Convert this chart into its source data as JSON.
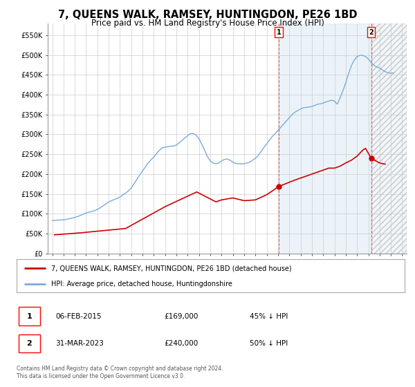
{
  "title": "7, QUEENS WALK, RAMSEY, HUNTINGDON, PE26 1BD",
  "subtitle": "Price paid vs. HM Land Registry's House Price Index (HPI)",
  "title_fontsize": 10.5,
  "subtitle_fontsize": 8.5,
  "ylabel_ticks": [
    "£0",
    "£50K",
    "£100K",
    "£150K",
    "£200K",
    "£250K",
    "£300K",
    "£350K",
    "£400K",
    "£450K",
    "£500K",
    "£550K"
  ],
  "ytick_values": [
    0,
    50000,
    100000,
    150000,
    200000,
    250000,
    300000,
    350000,
    400000,
    450000,
    500000,
    550000
  ],
  "ylim": [
    0,
    580000
  ],
  "xlim_start": 1994.6,
  "xlim_end": 2026.4,
  "hpi_color": "#7aaadd",
  "price_color": "#cc0000",
  "background_color": "#ffffff",
  "grid_color": "#cccccc",
  "hatch_color": "#cccccc",
  "marker1_x": 2015.08,
  "marker1_y": 169000,
  "marker2_x": 2023.25,
  "marker2_y": 240000,
  "legend_line1": "7, QUEENS WALK, RAMSEY, HUNTINGDON, PE26 1BD (detached house)",
  "legend_line2": "HPI: Average price, detached house, Huntingdonshire",
  "footnote": "Contains HM Land Registry data © Crown copyright and database right 2024.\nThis data is licensed under the Open Government Licence v3.0.",
  "hpi_data_x": [
    1995.0,
    1995.25,
    1995.5,
    1995.75,
    1996.0,
    1996.25,
    1996.5,
    1996.75,
    1997.0,
    1997.25,
    1997.5,
    1997.75,
    1998.0,
    1998.25,
    1998.5,
    1998.75,
    1999.0,
    1999.25,
    1999.5,
    1999.75,
    2000.0,
    2000.25,
    2000.5,
    2000.75,
    2001.0,
    2001.25,
    2001.5,
    2001.75,
    2002.0,
    2002.25,
    2002.5,
    2002.75,
    2003.0,
    2003.25,
    2003.5,
    2003.75,
    2004.0,
    2004.25,
    2004.5,
    2004.75,
    2005.0,
    2005.25,
    2005.5,
    2005.75,
    2006.0,
    2006.25,
    2006.5,
    2006.75,
    2007.0,
    2007.25,
    2007.5,
    2007.75,
    2008.0,
    2008.25,
    2008.5,
    2008.75,
    2009.0,
    2009.25,
    2009.5,
    2009.75,
    2010.0,
    2010.25,
    2010.5,
    2010.75,
    2011.0,
    2011.25,
    2011.5,
    2011.75,
    2012.0,
    2012.25,
    2012.5,
    2012.75,
    2013.0,
    2013.25,
    2013.5,
    2013.75,
    2014.0,
    2014.25,
    2014.5,
    2014.75,
    2015.0,
    2015.25,
    2015.5,
    2015.75,
    2016.0,
    2016.25,
    2016.5,
    2016.75,
    2017.0,
    2017.25,
    2017.5,
    2017.75,
    2018.0,
    2018.25,
    2018.5,
    2018.75,
    2019.0,
    2019.25,
    2019.5,
    2019.75,
    2020.0,
    2020.25,
    2020.5,
    2020.75,
    2021.0,
    2021.25,
    2021.5,
    2021.75,
    2022.0,
    2022.25,
    2022.5,
    2022.75,
    2023.0,
    2023.25,
    2023.5,
    2023.75,
    2024.0,
    2024.25,
    2024.5,
    2024.75,
    2025.0,
    2025.25
  ],
  "hpi_data_y": [
    83000,
    83500,
    84000,
    84500,
    85000,
    86000,
    87500,
    89000,
    91000,
    93000,
    96000,
    99000,
    102000,
    104000,
    106000,
    108000,
    111000,
    115000,
    120000,
    125000,
    130000,
    133000,
    136000,
    139000,
    142000,
    147000,
    152000,
    158000,
    165000,
    176000,
    187000,
    198000,
    208000,
    218000,
    228000,
    236000,
    243000,
    252000,
    260000,
    266000,
    268000,
    269000,
    270000,
    271000,
    273000,
    279000,
    285000,
    291000,
    297000,
    302000,
    302000,
    298000,
    289000,
    275000,
    260000,
    244000,
    233000,
    228000,
    226000,
    228000,
    233000,
    237000,
    238000,
    235000,
    230000,
    227000,
    226000,
    226000,
    226000,
    228000,
    230000,
    235000,
    240000,
    247000,
    257000,
    267000,
    276000,
    286000,
    295000,
    302000,
    310000,
    318000,
    326000,
    334000,
    342000,
    350000,
    356000,
    360000,
    364000,
    367000,
    368000,
    369000,
    370000,
    373000,
    376000,
    377000,
    379000,
    382000,
    384000,
    386000,
    384000,
    376000,
    392000,
    410000,
    430000,
    453000,
    473000,
    487000,
    496000,
    499000,
    499000,
    496000,
    490000,
    481000,
    474000,
    470000,
    467000,
    462000,
    458000,
    455000,
    454000,
    455000
  ],
  "price_data_x": [
    1995.2,
    1997.5,
    2001.5,
    2005.0,
    2007.8,
    2009.5,
    2010.0,
    2011.0,
    2012.0,
    2013.0,
    2014.0,
    2015.08,
    2016.5,
    2017.5,
    2018.0,
    2019.0,
    2019.5,
    2020.0,
    2020.5,
    2021.0,
    2021.5,
    2022.0,
    2022.5,
    2022.75,
    2023.25,
    2023.75,
    2024.0,
    2024.5
  ],
  "price_data_y": [
    47000,
    52000,
    63000,
    118000,
    155000,
    130000,
    135000,
    140000,
    133000,
    135000,
    148000,
    169000,
    185000,
    195000,
    200000,
    210000,
    215000,
    215000,
    220000,
    228000,
    235000,
    245000,
    260000,
    265000,
    240000,
    232000,
    228000,
    225000
  ]
}
